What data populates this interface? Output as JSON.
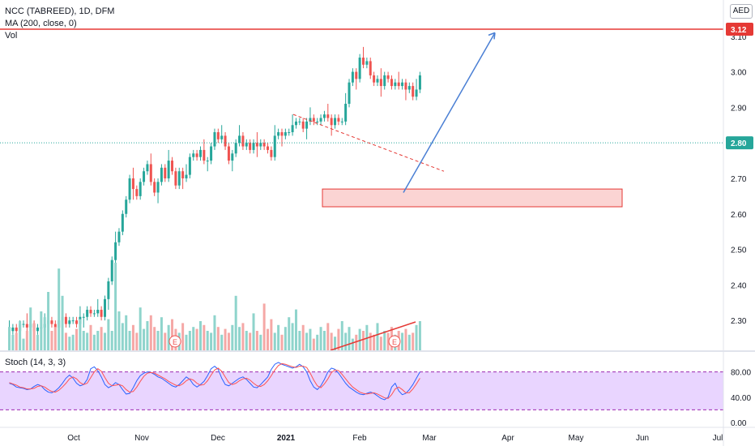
{
  "header": {
    "title": "NCC (TABREED), 1D, DFM",
    "ma_label": "MA (200, close, 0)",
    "vol_label": "Vol",
    "currency": "AED"
  },
  "stoch": {
    "label": "Stoch (14, 3, 3)",
    "upper_band": 80,
    "lower_band": 20,
    "ticks": [
      "80.00",
      "40.00",
      "0.00"
    ],
    "k": [
      62,
      60,
      56,
      55,
      54,
      52,
      53,
      57,
      60,
      58,
      52,
      48,
      47,
      50,
      55,
      62,
      70,
      75,
      70,
      62,
      58,
      60,
      68,
      85,
      88,
      82,
      72,
      60,
      55,
      58,
      63,
      60,
      52,
      45,
      46,
      55,
      66,
      74,
      78,
      80,
      79,
      76,
      72,
      70,
      66,
      62,
      58,
      56,
      60,
      66,
      72,
      68,
      60,
      56,
      60,
      65,
      74,
      85,
      89,
      84,
      70,
      60,
      58,
      62,
      66,
      70,
      72,
      68,
      62,
      56,
      55,
      60,
      66,
      72,
      84,
      92,
      95,
      92,
      90,
      88,
      86,
      88,
      92,
      88,
      80,
      66,
      56,
      52,
      58,
      68,
      80,
      86,
      84,
      78,
      70,
      62,
      56,
      52,
      48,
      45,
      44,
      46,
      48,
      46,
      42,
      38,
      36,
      40,
      56,
      62,
      50,
      44,
      46,
      52,
      60,
      70,
      80
    ],
    "d": [
      63,
      61,
      59,
      56,
      55,
      53,
      53,
      54,
      57,
      58,
      56,
      52,
      49,
      48,
      51,
      56,
      62,
      69,
      72,
      69,
      63,
      60,
      62,
      71,
      80,
      85,
      81,
      71,
      62,
      58,
      59,
      60,
      58,
      52,
      48,
      49,
      56,
      65,
      73,
      78,
      79,
      78,
      75,
      72,
      69,
      65,
      62,
      59,
      58,
      61,
      66,
      69,
      67,
      62,
      59,
      60,
      66,
      75,
      83,
      86,
      81,
      72,
      63,
      60,
      62,
      66,
      69,
      70,
      67,
      62,
      58,
      57,
      60,
      66,
      74,
      83,
      90,
      93,
      92,
      90,
      88,
      87,
      89,
      89,
      87,
      78,
      67,
      58,
      55,
      61,
      69,
      79,
      83,
      82,
      76,
      69,
      62,
      56,
      52,
      48,
      46,
      45,
      46,
      47,
      45,
      42,
      39,
      38,
      44,
      53,
      56,
      52,
      47,
      47,
      53,
      61,
      70
    ]
  },
  "chart_data": {
    "type": "candlestick",
    "title": "NCC (TABREED), 1D, DFM",
    "ylim": [
      2.22,
      3.14
    ],
    "y_ticks": [
      "3.10",
      "3.00",
      "2.90",
      "2.80",
      "2.70",
      "2.60",
      "2.50",
      "2.40",
      "2.30"
    ],
    "x_labels": [
      "Oct",
      "Nov",
      "Dec",
      "2021",
      "Feb",
      "Mar",
      "Apr",
      "May",
      "Jun",
      "Jul"
    ],
    "current_price": "2.80",
    "target_price": "3.12",
    "price_changes": [
      0,
      0.01,
      -0.01,
      0.02,
      0,
      -0.01,
      0.01,
      -0.02,
      0.01,
      0,
      0.01,
      0.01,
      -0.01,
      -0.01,
      0.02,
      0.01,
      -0.02,
      0.01,
      0,
      -0.01,
      0.02,
      0,
      0.02,
      -0.01,
      0,
      0.01,
      -0.02,
      0.05,
      0.05,
      0.06,
      0.05,
      0.03,
      0.05,
      0.04,
      0.06,
      -0.03,
      -0.02,
      0.04,
      0.03,
      0.02,
      -0.05,
      -0.03,
      0.03,
      0.04,
      -0.03,
      0.05,
      -0.03,
      -0.04,
      0.04,
      -0.02,
      0.01,
      0.05,
      0.01,
      -0.01,
      0.02,
      -0.03,
      0,
      0.04,
      0.04,
      -0.02,
      0.01,
      -0.03,
      -0.04,
      0.02,
      0.03,
      0.02,
      -0.03,
      0.01,
      -0.02,
      0.02,
      -0.01,
      0.01,
      -0.01,
      -0.01,
      -0.02,
      0.06,
      0.01,
      -0.01,
      0.01,
      0,
      0.02,
      0.01,
      0,
      -0.02,
      0.02,
      0.01,
      -0.01,
      0,
      0.01,
      0.01,
      -0.01,
      -0.02,
      0.02,
      -0.01,
      0,
      0.05,
      0.06,
      0.03,
      -0.02,
      0.06,
      -0.02,
      0.01,
      -0.04,
      -0.02,
      0.01,
      -0.02,
      0.03,
      -0.01,
      -0.02,
      0.01,
      -0.01,
      0.01,
      -0.02,
      0.01,
      -0.03,
      0.02,
      0.04
    ],
    "volumes": [
      12,
      8,
      9,
      15,
      6,
      10,
      22,
      14,
      8,
      20,
      17,
      30,
      10,
      12,
      42,
      28,
      9,
      7,
      8,
      11,
      16,
      10,
      9,
      13,
      8,
      10,
      12,
      9,
      16,
      10,
      45,
      20,
      14,
      18,
      10,
      13,
      9,
      22,
      11,
      15,
      18,
      12,
      10,
      17,
      9,
      13,
      16,
      11,
      9,
      14,
      8,
      10,
      12,
      11,
      15,
      13,
      10,
      9,
      18,
      12,
      8,
      11,
      9,
      13,
      28,
      12,
      14,
      10,
      9,
      19,
      10,
      8,
      24,
      11,
      16,
      9,
      13,
      8,
      12,
      17,
      14,
      21,
      10,
      13,
      9,
      11,
      6,
      8,
      12,
      10,
      14,
      9,
      7,
      11,
      15,
      9,
      12,
      6,
      8,
      11,
      10,
      13,
      9,
      8,
      14,
      7,
      10,
      9,
      12,
      8,
      10,
      9,
      11,
      8,
      9,
      13,
      15
    ],
    "annotations": {
      "earnings_marker": "E",
      "support_zone": [
        2.62,
        2.67
      ]
    }
  }
}
